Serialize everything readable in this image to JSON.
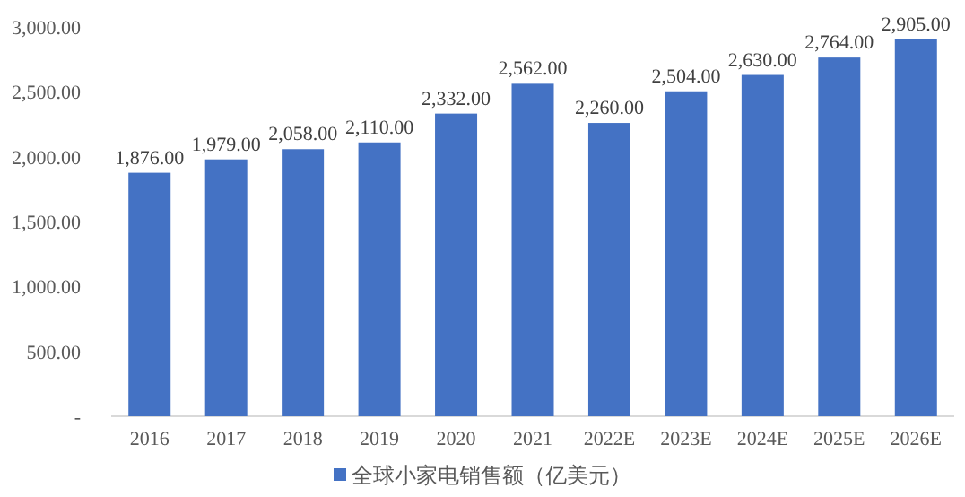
{
  "chart_data": {
    "type": "bar",
    "categories": [
      "2016",
      "2017",
      "2018",
      "2019",
      "2020",
      "2021",
      "2022E",
      "2023E",
      "2024E",
      "2025E",
      "2026E"
    ],
    "series": [
      {
        "name": "全球小家电销售额（亿美元）",
        "color": "#4472c4",
        "values": [
          1876,
          1979,
          2058,
          2110,
          2332,
          2562,
          2260,
          2504,
          2630,
          2764,
          2905
        ],
        "value_labels": [
          "1,876.00",
          "1,979.00",
          "2,058.00",
          "2,110.00",
          "2,332.00",
          "2,562.00",
          "2,260.00",
          "2,504.00",
          "2,630.00",
          "2,764.00",
          "2,905.00"
        ]
      }
    ],
    "ylim": [
      0,
      3000
    ],
    "yticks": [
      {
        "value": 0,
        "label": "-"
      },
      {
        "value": 500,
        "label": "500.00"
      },
      {
        "value": 1000,
        "label": "1,000.00"
      },
      {
        "value": 1500,
        "label": "1,500.00"
      },
      {
        "value": 2000,
        "label": "2,000.00"
      },
      {
        "value": 2500,
        "label": "2,500.00"
      },
      {
        "value": 3000,
        "label": "3,000.00"
      }
    ],
    "grid": false,
    "legend": "bottom"
  }
}
